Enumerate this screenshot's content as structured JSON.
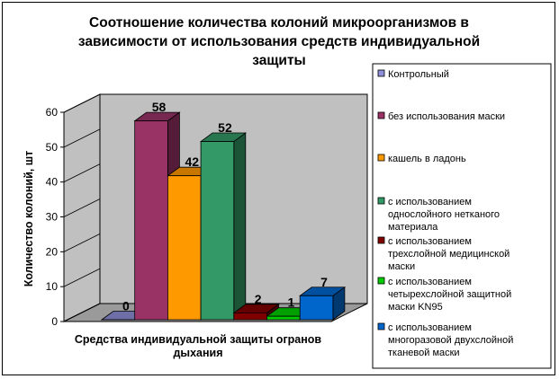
{
  "chart_data": {
    "type": "bar",
    "title": "Соотношение количества колоний микроорганизмов в зависимости от использования средств индивидуальной защиты",
    "title_lines": [
      "Соотношение количества колоний микроорганизмов в",
      "зависимости от использования средств индивидуальной",
      "защиты"
    ],
    "ylabel": "Количество колоний, шт",
    "xlabel": "Средства индивидуальной защиты огранов дыхания",
    "xlabel_lines": [
      "Средства индивидуальной защиты огранов",
      "дыхания"
    ],
    "ylim": [
      0,
      60
    ],
    "yticks": [
      0,
      10,
      20,
      30,
      40,
      50,
      60
    ],
    "grid": false,
    "legend_position": "right",
    "series": [
      {
        "name": "Контрольный",
        "legend_lines": [
          "Контрольный"
        ],
        "value": 0,
        "color": "#8E8ED8"
      },
      {
        "name": "без использования маски",
        "legend_lines": [
          "без использования маски"
        ],
        "value": 58,
        "color": "#993366"
      },
      {
        "name": "кашель в ладонь",
        "legend_lines": [
          "кашель в ладонь"
        ],
        "value": 42,
        "color": "#FF9900"
      },
      {
        "name": "с использованием однослойного нетканого материала",
        "legend_lines": [
          "с использованием",
          "однослойного нетканого",
          "материала"
        ],
        "value": 52,
        "color": "#339966"
      },
      {
        "name": "с использованием трехслойной медицинской маски",
        "legend_lines": [
          "с использованием",
          "трехслойной медицинской",
          "маски"
        ],
        "value": 2,
        "color": "#800000"
      },
      {
        "name": "с использованием четырехслойной защитной маски KN95",
        "legend_lines": [
          "с использованием",
          "четырехслойной защитной",
          "маски KN95"
        ],
        "value": 1,
        "color": "#00CC00"
      },
      {
        "name": "с использованием многоразовой двухслойной тканевой маски",
        "legend_lines": [
          "с использованием",
          "многоразовой двухслойной",
          "тканевой маски"
        ],
        "value": 7,
        "color": "#0066CC"
      }
    ]
  }
}
